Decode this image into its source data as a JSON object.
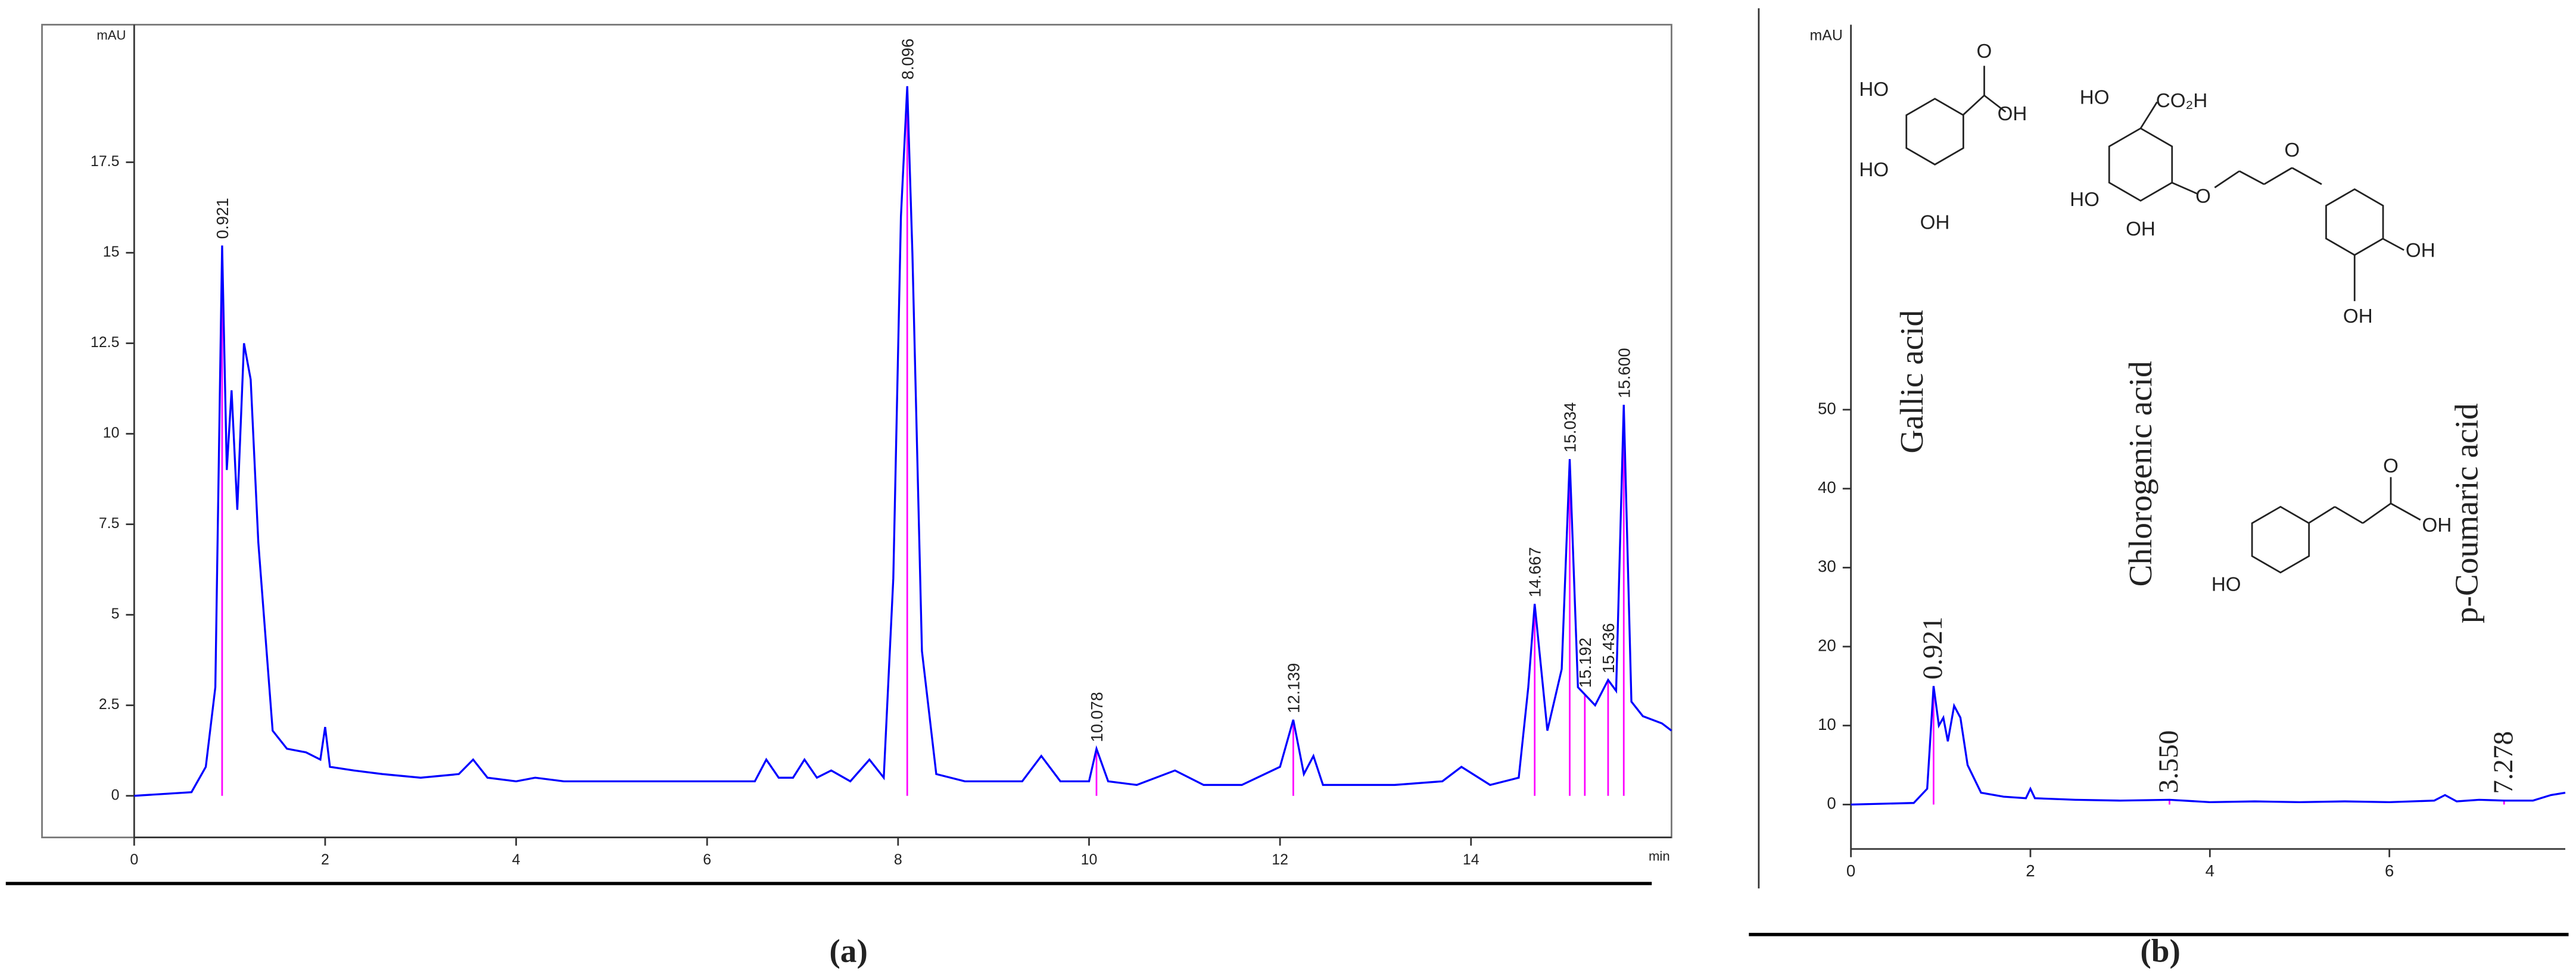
{
  "chart_data": [
    {
      "type": "line",
      "caption": "(a)",
      "xlabel": "min",
      "ylabel": "mAU",
      "x": [
        0,
        0.6,
        0.75,
        0.85,
        0.921,
        0.97,
        1.02,
        1.08,
        1.15,
        1.22,
        1.3,
        1.45,
        1.6,
        1.8,
        1.95,
        2.0,
        2.05,
        2.3,
        2.6,
        3.0,
        3.4,
        3.55,
        3.7,
        4.0,
        4.2,
        4.5,
        5.0,
        5.5,
        6.0,
        6.5,
        6.62,
        6.75,
        6.9,
        7.02,
        7.15,
        7.3,
        7.5,
        7.7,
        7.85,
        7.95,
        8.03,
        8.096,
        8.15,
        8.25,
        8.4,
        8.7,
        9.0,
        9.3,
        9.5,
        9.7,
        10.0,
        10.078,
        10.2,
        10.5,
        10.9,
        11.2,
        11.6,
        12.0,
        12.139,
        12.25,
        12.35,
        12.45,
        12.7,
        13.2,
        13.7,
        13.9,
        14.2,
        14.5,
        14.6,
        14.667,
        14.8,
        14.95,
        15.034,
        15.12,
        15.192,
        15.3,
        15.436,
        15.52,
        15.6,
        15.68,
        15.8,
        16.0,
        16.1
      ],
      "series": [
        {
          "color": "#0000ff",
          "values": [
            0,
            0.1,
            0.8,
            3,
            15.2,
            9,
            11.2,
            7.9,
            12.5,
            11.5,
            7,
            1.8,
            1.3,
            1.2,
            1.0,
            1.9,
            0.8,
            0.7,
            0.6,
            0.5,
            0.6,
            1.0,
            0.5,
            0.4,
            0.5,
            0.4,
            0.4,
            0.4,
            0.4,
            0.4,
            1.0,
            0.5,
            0.5,
            1.0,
            0.5,
            0.7,
            0.4,
            1.0,
            0.5,
            6,
            16,
            19.6,
            15,
            4,
            0.6,
            0.4,
            0.4,
            0.4,
            1.1,
            0.4,
            0.4,
            1.3,
            0.4,
            0.3,
            0.7,
            0.3,
            0.3,
            0.8,
            2.1,
            0.6,
            1.1,
            0.3,
            0.3,
            0.3,
            0.4,
            0.8,
            0.3,
            0.5,
            3,
            5.3,
            1.8,
            3.5,
            9.3,
            3,
            2.8,
            2.5,
            3.2,
            2.9,
            10.8,
            2.6,
            2.2,
            2.0,
            1.8
          ]
        }
      ],
      "annotations": [
        {
          "x": 0.921,
          "y": 15.2,
          "text": "0.921"
        },
        {
          "x": 8.096,
          "y": 19.6,
          "text": "8.096"
        },
        {
          "x": 10.078,
          "y": 1.3,
          "text": "10.078"
        },
        {
          "x": 12.139,
          "y": 2.1,
          "text": "12.139"
        },
        {
          "x": 14.667,
          "y": 5.3,
          "text": "14.667"
        },
        {
          "x": 15.034,
          "y": 9.3,
          "text": "15.034"
        },
        {
          "x": 15.192,
          "y": 2.8,
          "text": "15.192"
        },
        {
          "x": 15.436,
          "y": 3.2,
          "text": "15.436"
        },
        {
          "x": 15.6,
          "y": 10.8,
          "text": "15.600"
        }
      ],
      "marker_color": "#ff00ff",
      "xlim": [
        0,
        16.1
      ],
      "ylim": [
        -1.15,
        21.3
      ],
      "xticks": [
        0,
        2,
        4,
        6,
        8,
        10,
        12,
        14
      ],
      "yticks": [
        0,
        2.5,
        5,
        7.5,
        10,
        12.5,
        15,
        17.5
      ]
    },
    {
      "type": "line",
      "caption": "(b)",
      "ylabel": "mAU",
      "x": [
        0,
        0.7,
        0.85,
        0.921,
        0.98,
        1.03,
        1.08,
        1.15,
        1.22,
        1.3,
        1.45,
        1.7,
        1.95,
        2.0,
        2.05,
        2.5,
        3.0,
        3.55,
        4.0,
        4.5,
        5.0,
        5.5,
        6.0,
        6.5,
        6.62,
        6.75,
        7.0,
        7.278,
        7.6,
        7.8,
        7.96
      ],
      "series": [
        {
          "color": "#0000ff",
          "values": [
            0,
            0.2,
            2,
            15,
            10,
            11,
            8,
            12.5,
            11,
            5,
            1.5,
            1,
            0.8,
            2,
            0.8,
            0.6,
            0.5,
            0.6,
            0.3,
            0.4,
            0.3,
            0.4,
            0.3,
            0.5,
            1.2,
            0.4,
            0.6,
            0.5,
            0.5,
            1.2,
            1.5
          ]
        }
      ],
      "annotations": [
        {
          "x": 0.921,
          "y": 15,
          "text": "0.921"
        },
        {
          "x": 3.55,
          "y": 0.6,
          "text": "3.550"
        },
        {
          "x": 7.278,
          "y": 0.5,
          "text": "7.278"
        }
      ],
      "marker_color": "#ff00ff",
      "compound_labels": [
        "Gallic acid",
        "Chlorogenic acid",
        "p-Coumaric acid"
      ],
      "structure_labels": [
        [
          "O",
          "HO",
          "OH",
          "HO",
          "OH"
        ],
        [
          "HO",
          "CO₂H",
          "O",
          "HO",
          "OH",
          "O",
          "OH",
          "OH"
        ],
        [
          "O",
          "OH",
          "HO"
        ]
      ],
      "xlim": [
        0,
        7.96
      ],
      "ylim": [
        -5.625,
        98.75
      ],
      "xticks": [
        0,
        2,
        4,
        6
      ],
      "yticks": [
        0,
        10,
        20,
        30,
        40,
        50
      ]
    }
  ]
}
